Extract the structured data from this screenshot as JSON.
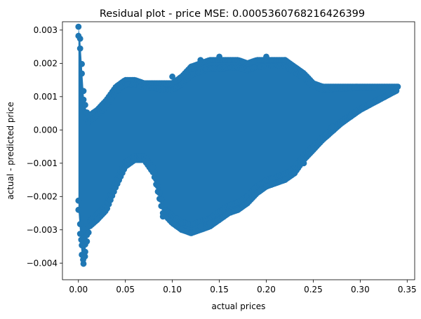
{
  "chart_data": {
    "type": "scatter",
    "title": "Residual plot - price MSE: 0.0005360768216426399",
    "xlabel": "actual prices",
    "ylabel": "actual - predicted price",
    "xlim": [
      -0.017,
      0.358
    ],
    "ylim": [
      -0.0045,
      0.00325
    ],
    "xticks": [
      0.0,
      0.05,
      0.1,
      0.15,
      0.2,
      0.25,
      0.3,
      0.35
    ],
    "xtick_labels": [
      "0.00",
      "0.05",
      "0.10",
      "0.15",
      "0.20",
      "0.25",
      "0.30",
      "0.35"
    ],
    "yticks": [
      -0.004,
      -0.003,
      -0.002,
      -0.001,
      0.0,
      0.001,
      0.002,
      0.003
    ],
    "ytick_labels": [
      "−0.004",
      "−0.003",
      "−0.002",
      "−0.001",
      "0.000",
      "0.001",
      "0.002",
      "0.003"
    ],
    "grid": false,
    "marker_color": "#1f77b4",
    "series": [
      {
        "upper_envelope": [
          [
            0.0,
            0.0031
          ],
          [
            0.002,
            0.0027
          ],
          [
            0.004,
            0.0018
          ],
          [
            0.006,
            0.0009
          ],
          [
            0.01,
            0.0004
          ],
          [
            0.02,
            0.0006
          ],
          [
            0.03,
            0.0009
          ],
          [
            0.04,
            0.0013
          ],
          [
            0.05,
            0.0015
          ],
          [
            0.06,
            0.0015
          ],
          [
            0.07,
            0.0014
          ],
          [
            0.08,
            0.0014
          ],
          [
            0.09,
            0.0014
          ],
          [
            0.1,
            0.0014
          ],
          [
            0.11,
            0.0016
          ],
          [
            0.12,
            0.0019
          ],
          [
            0.13,
            0.002
          ],
          [
            0.14,
            0.0021
          ],
          [
            0.15,
            0.0021
          ],
          [
            0.16,
            0.0021
          ],
          [
            0.17,
            0.0021
          ],
          [
            0.18,
            0.002
          ],
          [
            0.19,
            0.0021
          ],
          [
            0.2,
            0.0021
          ],
          [
            0.21,
            0.0021
          ],
          [
            0.22,
            0.0021
          ],
          [
            0.23,
            0.0019
          ],
          [
            0.24,
            0.0017
          ],
          [
            0.25,
            0.0014
          ],
          [
            0.26,
            0.0013
          ],
          [
            0.28,
            0.0013
          ],
          [
            0.3,
            0.0013
          ],
          [
            0.32,
            0.0013
          ],
          [
            0.34,
            0.0013
          ]
        ],
        "lower_envelope": [
          [
            0.0,
            -0.0024
          ],
          [
            0.003,
            -0.0036
          ],
          [
            0.005,
            -0.0041
          ],
          [
            0.008,
            -0.0035
          ],
          [
            0.012,
            -0.0029
          ],
          [
            0.02,
            -0.0027
          ],
          [
            0.03,
            -0.0024
          ],
          [
            0.04,
            -0.0017
          ],
          [
            0.05,
            -0.0011
          ],
          [
            0.06,
            -0.0009
          ],
          [
            0.07,
            -0.0009
          ],
          [
            0.08,
            -0.0013
          ],
          [
            0.09,
            -0.0025
          ],
          [
            0.1,
            -0.0028
          ],
          [
            0.11,
            -0.003
          ],
          [
            0.12,
            -0.0031
          ],
          [
            0.13,
            -0.003
          ],
          [
            0.14,
            -0.0029
          ],
          [
            0.15,
            -0.0027
          ],
          [
            0.16,
            -0.0025
          ],
          [
            0.17,
            -0.0024
          ],
          [
            0.18,
            -0.0022
          ],
          [
            0.19,
            -0.0019
          ],
          [
            0.2,
            -0.0017
          ],
          [
            0.21,
            -0.0016
          ],
          [
            0.22,
            -0.0015
          ],
          [
            0.23,
            -0.0013
          ],
          [
            0.24,
            -0.0009
          ],
          [
            0.25,
            -0.0006
          ],
          [
            0.26,
            -0.0003
          ],
          [
            0.28,
            0.0002
          ],
          [
            0.3,
            0.0006
          ],
          [
            0.32,
            0.0009
          ],
          [
            0.34,
            0.0012
          ]
        ],
        "outliers": [
          [
            0.003,
            -0.0033
          ],
          [
            0.005,
            -0.0039
          ],
          [
            0.007,
            -0.0038
          ],
          [
            0.011,
            -0.0029
          ],
          [
            0.02,
            -0.0027
          ],
          [
            0.09,
            -0.0026
          ],
          [
            0.11,
            -0.003
          ],
          [
            0.12,
            -0.0031
          ],
          [
            0.13,
            -0.0029
          ],
          [
            0.14,
            -0.0028
          ],
          [
            0.17,
            -0.0024
          ],
          [
            0.2,
            -0.0017
          ],
          [
            0.22,
            -0.0015
          ],
          [
            0.23,
            -0.0013
          ],
          [
            0.24,
            -0.001
          ],
          [
            0.25,
            -0.0006
          ],
          [
            0.27,
            0.0001
          ],
          [
            0.29,
            0.0004
          ],
          [
            0.31,
            0.0008
          ],
          [
            0.33,
            0.0011
          ],
          [
            0.1,
            0.0016
          ],
          [
            0.12,
            0.0019
          ],
          [
            0.13,
            0.0021
          ],
          [
            0.15,
            0.0022
          ],
          [
            0.2,
            0.0022
          ],
          [
            0.22,
            0.0021
          ],
          [
            0.34,
            0.0013
          ]
        ]
      }
    ]
  }
}
